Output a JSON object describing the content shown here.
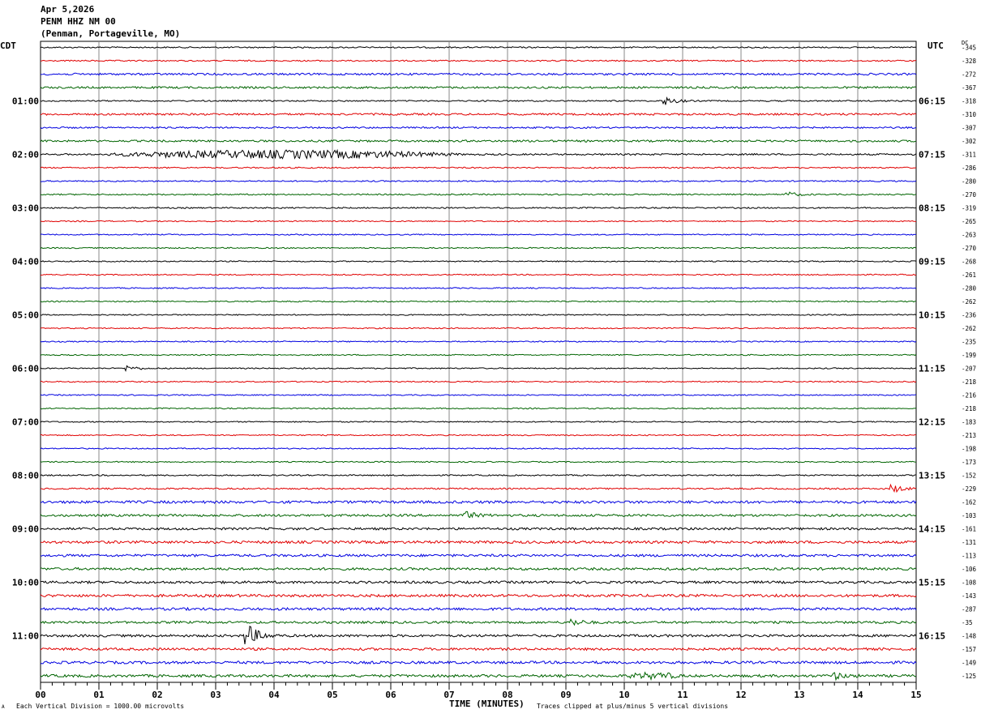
{
  "header": {
    "date": "Apr 5,2026",
    "station": "PENM HHZ NM 00",
    "location": "(Penman, Portageville, MO)"
  },
  "left_tz": "CDT",
  "right_tz": "UTC",
  "dc_label": "DC",
  "footer": {
    "vertical_division": "Each Vertical Division = 1000.00 microvolts",
    "clip_note": "Traces clipped at plus/minus 5 vertical divisions",
    "corner_mark": "A"
  },
  "chart_data": {
    "type": "line",
    "xlabel": "TIME (MINUTES)",
    "xlim": [
      0,
      15
    ],
    "x_ticks": [
      "00",
      "01",
      "02",
      "03",
      "04",
      "05",
      "06",
      "07",
      "08",
      "09",
      "10",
      "11",
      "12",
      "13",
      "14",
      "15"
    ],
    "trace_colors": [
      "#000000",
      "#e00000",
      "#0000e0",
      "#006400"
    ],
    "trace_count": 48,
    "left_hour_labels": [
      "01:00",
      "02:00",
      "03:00",
      "04:00",
      "05:00",
      "06:00",
      "07:00",
      "08:00",
      "09:00",
      "10:00",
      "11:00"
    ],
    "right_hour_labels": [
      "06:15",
      "07:15",
      "08:15",
      "09:15",
      "10:15",
      "11:15",
      "12:15",
      "13:15",
      "14:15",
      "15:15",
      "16:15"
    ],
    "dc_offsets": [
      "-345",
      "-328",
      "-272",
      "-367",
      "-318",
      "-310",
      "-307",
      "-302",
      "-311",
      "-286",
      "-280",
      "-270",
      "-319",
      "-265",
      "-263",
      "-270",
      "-268",
      "-261",
      "-280",
      "-262",
      "-236",
      "-262",
      "-235",
      "-199",
      "-207",
      "-218",
      "-216",
      "-218",
      "-183",
      "-213",
      "-198",
      "-173",
      "-152",
      "-229",
      "-162",
      "-103",
      "-161",
      "-131",
      "-113",
      "-106",
      "-108",
      "-143",
      "-287",
      "-35",
      "-148",
      "-157",
      "-149",
      "-125"
    ],
    "trace_noise": [
      0.8,
      0.8,
      1.2,
      1.2,
      0.8,
      1.2,
      1.0,
      1.2,
      1.0,
      0.8,
      0.8,
      0.8,
      0.8,
      0.7,
      0.7,
      0.7,
      0.7,
      0.7,
      0.7,
      0.7,
      0.7,
      0.7,
      0.7,
      0.7,
      0.7,
      0.7,
      0.7,
      0.7,
      0.7,
      0.7,
      0.7,
      0.7,
      0.8,
      0.9,
      1.6,
      1.4,
      1.4,
      1.6,
      1.5,
      1.5,
      1.5,
      1.6,
      1.6,
      1.4,
      1.5,
      1.5,
      1.6,
      1.6
    ],
    "events": [
      {
        "trace": 4,
        "minute": 10.7,
        "amplitude": 5
      },
      {
        "trace": 8,
        "minute": 1.0,
        "end_minute": 7.3,
        "amplitude": 4.5
      },
      {
        "trace": 11,
        "minute": 12.8,
        "amplitude": 3
      },
      {
        "trace": 24,
        "minute": 1.5,
        "amplitude": 3
      },
      {
        "trace": 33,
        "minute": 14.6,
        "amplitude": 5
      },
      {
        "trace": 35,
        "minute": 7.3,
        "amplitude": 4
      },
      {
        "trace": 43,
        "minute": 9.1,
        "amplitude": 4
      },
      {
        "trace": 44,
        "minute": 3.55,
        "amplitude": 14
      },
      {
        "trace": 47,
        "minute": 10.0,
        "end_minute": 11.0,
        "amplitude": 3
      },
      {
        "trace": 47,
        "minute": 13.6,
        "amplitude": 4
      }
    ]
  }
}
